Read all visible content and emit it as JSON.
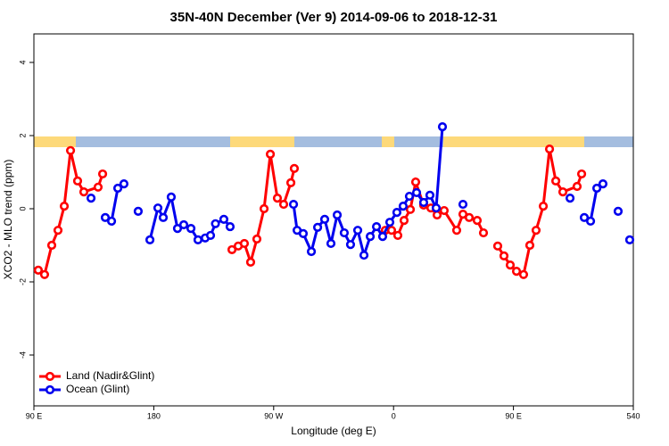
{
  "chart_data": {
    "type": "line",
    "title": "35N-40N December (Ver 9)   2014-09-06 to 2018-12-31",
    "x_label": "Longitude (deg E)",
    "y_label": "XCO2 - MLO trend (ppm)",
    "xlim": [
      90,
      540
    ],
    "xticks": [
      {
        "value": 90,
        "label": "90 E"
      },
      180,
      {
        "value": 270,
        "label": "90 W"
      },
      {
        "value": 360,
        "label": "0"
      },
      {
        "value": 450,
        "label": "90 E"
      },
      540
    ],
    "ylim": [
      -5.39,
      4.78
    ],
    "yticks": [
      -4,
      -2,
      0,
      2,
      4
    ],
    "legend": "bottom-left",
    "series": [
      {
        "name": "Land (Nadir&Glint)",
        "color": "#ff0000",
        "x": [
          93.3,
          98.0,
          103.4,
          108.1,
          112.8,
          117.5,
          122.8,
          127.5,
          138.2,
          141.6,
          null,
          238.7,
          243.4,
          248.0,
          252.7,
          257.4,
          262.8,
          267.5,
          272.8,
          277.5,
          282.9,
          285.5,
          null,
          353.8,
          358.5,
          363.2,
          367.9,
          372.6,
          376.6,
          382.6,
          388.0,
          392.7,
          398.0,
          407.4,
          412.1,
          416.8,
          422.8,
          427.5,
          null,
          438.2,
          442.9,
          447.6,
          452.3,
          457.6,
          462.3,
          467.0,
          472.4,
          477.1,
          481.8,
          487.1,
          497.8,
          501.2
        ],
        "values": [
          -1.68,
          -1.8,
          -1.0,
          -0.59,
          0.07,
          1.59,
          0.76,
          0.46,
          0.59,
          0.95,
          null,
          -1.12,
          -1.02,
          -0.95,
          -1.46,
          -0.83,
          0.0,
          1.49,
          0.29,
          0.12,
          0.71,
          1.1,
          null,
          -0.59,
          -0.59,
          -0.73,
          -0.32,
          -0.02,
          0.73,
          0.1,
          0.02,
          -0.17,
          -0.05,
          -0.59,
          -0.15,
          -0.24,
          -0.32,
          -0.66,
          null,
          -1.02,
          -1.29,
          -1.54,
          -1.71,
          -1.8,
          -1.0,
          -0.59,
          0.07,
          1.63,
          0.76,
          0.46,
          0.61,
          0.95
        ]
      },
      {
        "name": "Ocean (Glint)",
        "color": "#0000ee",
        "x": [
          132.9,
          null,
          143.6,
          148.3,
          153.0,
          157.6,
          null,
          168.3,
          null,
          177.1,
          183.1,
          187.1,
          193.1,
          197.8,
          202.5,
          207.9,
          213.2,
          218.6,
          222.6,
          226.3,
          232.6,
          237.3,
          null,
          284.9,
          287.6,
          292.2,
          298.3,
          303.0,
          308.3,
          313.0,
          317.7,
          323.0,
          327.7,
          333.1,
          337.8,
          342.5,
          347.2,
          351.8,
          357.2,
          362.5,
          367.2,
          371.9,
          377.3,
          382.6,
          387.3,
          392.0,
          396.7,
          null,
          412.1,
          null,
          492.5,
          null,
          503.2,
          507.9,
          512.6,
          517.2,
          null,
          528.6,
          null,
          537.3
        ],
        "values": [
          0.29,
          null,
          -0.24,
          -0.34,
          0.56,
          0.68,
          null,
          -0.07,
          null,
          -0.85,
          0.02,
          -0.24,
          0.32,
          -0.54,
          -0.44,
          -0.54,
          -0.85,
          -0.8,
          -0.73,
          -0.41,
          -0.29,
          -0.49,
          null,
          0.12,
          -0.59,
          -0.68,
          -1.17,
          -0.51,
          -0.29,
          -0.95,
          -0.17,
          -0.66,
          -0.98,
          -0.59,
          -1.27,
          -0.76,
          -0.49,
          -0.76,
          -0.37,
          -0.1,
          0.07,
          0.34,
          0.44,
          0.17,
          0.37,
          0.02,
          2.24,
          null,
          0.12,
          null,
          0.29,
          null,
          -0.24,
          -0.34,
          0.56,
          0.68,
          null,
          -0.07,
          null,
          -0.85
        ]
      }
    ]
  }
}
